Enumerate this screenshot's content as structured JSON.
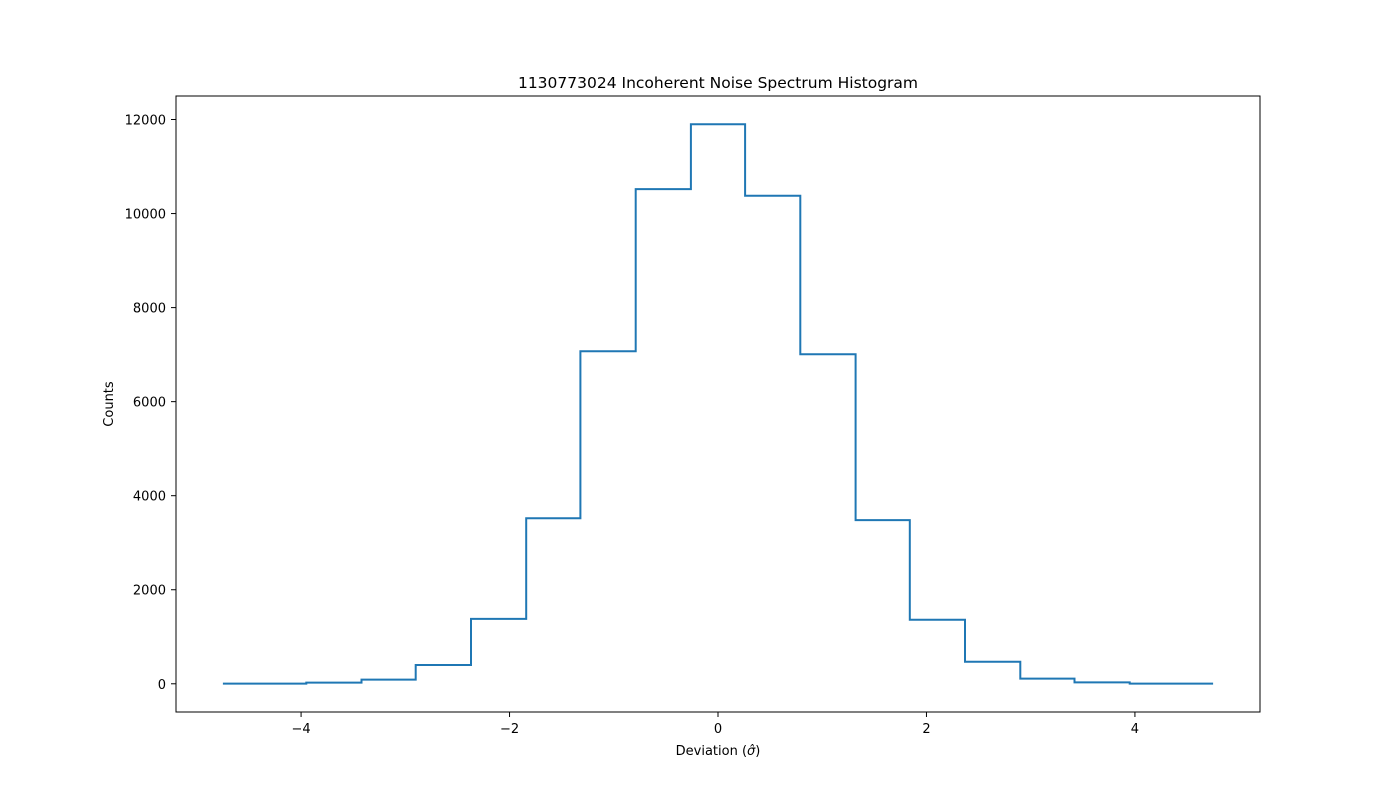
{
  "chart_data": {
    "type": "histogram",
    "title": "1130773024 Incoherent Noise Spectrum Histogram",
    "xlabel": "Deviation (σ̂)",
    "xlabel_parts": [
      "Deviation (",
      "σ̂",
      ")"
    ],
    "ylabel": "Counts",
    "xlim": [
      -5.2,
      5.2
    ],
    "ylim": [
      -600,
      12500
    ],
    "xticks": [
      -4,
      -2,
      0,
      2,
      4
    ],
    "xtick_labels": [
      "−4",
      "−2",
      "0",
      "2",
      "4"
    ],
    "yticks": [
      0,
      2000,
      4000,
      6000,
      8000,
      10000,
      12000
    ],
    "ytick_labels": [
      "0",
      "2000",
      "4000",
      "6000",
      "8000",
      "10000",
      "12000"
    ],
    "bin_edges": [
      -4.75,
      -3.95,
      -3.42,
      -2.9,
      -2.37,
      -1.84,
      -1.32,
      -0.79,
      -0.26,
      0.26,
      0.79,
      1.32,
      1.84,
      2.37,
      2.9,
      3.42,
      3.95,
      4.75
    ],
    "counts": [
      5,
      25,
      90,
      400,
      1380,
      3520,
      7070,
      10520,
      11900,
      10380,
      7010,
      3480,
      1360,
      470,
      110,
      30,
      5
    ],
    "line_color": "#1f77b4",
    "grid": false,
    "histtype": "step"
  }
}
